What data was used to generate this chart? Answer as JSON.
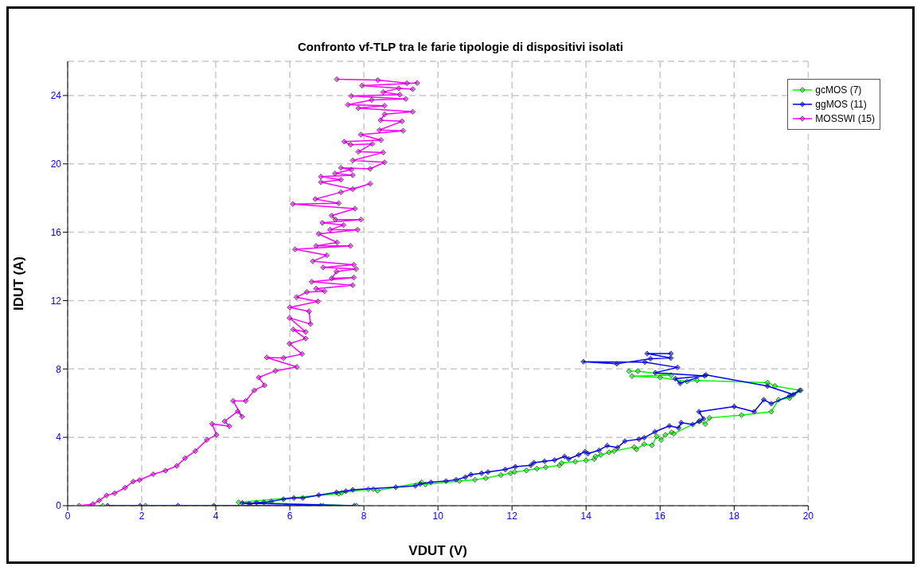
{
  "chart_data": {
    "type": "line",
    "title": "Confronto vf-TLP tra le farie tipologie di dispositivi isolati",
    "xlabel": "VDUT (V)",
    "ylabel": "IDUT (A)",
    "xlim": [
      0,
      20
    ],
    "xticks": [
      0,
      2,
      4,
      6,
      8,
      10,
      12,
      14,
      16,
      18,
      20
    ],
    "ylim": [
      0,
      26
    ],
    "yticks": [
      0,
      4,
      8,
      12,
      16,
      20,
      24
    ],
    "grid": true,
    "legend": "top right",
    "marker": "diamond",
    "line_style": "solid",
    "series": [
      {
        "name": "gcMOS (7)",
        "color": "#00ff00",
        "x": [
          0.95,
          2.1,
          5.9,
          6.9,
          7.8,
          4.62,
          7.32,
          7.4,
          8.12,
          8.25,
          8.37,
          9.56,
          9.66,
          10.58,
          11.0,
          11.29,
          11.7,
          11.96,
          12.07,
          12.39,
          12.67,
          12.91,
          13.28,
          13.34,
          13.71,
          14.0,
          14.22,
          14.26,
          14.4,
          14.62,
          14.76,
          15.3,
          15.36,
          15.57,
          15.78,
          15.91,
          16.03,
          16.14,
          16.31,
          16.37,
          17.07,
          17.22,
          17.33,
          18.2,
          19.0,
          19.2,
          19.5,
          19.8,
          19.1,
          18.9,
          17.0,
          16.73,
          16.0,
          15.24,
          16.3,
          15.4,
          15.16
        ],
        "values": [
          0,
          0,
          0,
          0,
          0,
          0.2,
          0.7,
          0.76,
          0.97,
          0.97,
          0.88,
          1.37,
          1.25,
          1.44,
          1.52,
          1.61,
          1.79,
          1.9,
          1.97,
          2.06,
          2.17,
          2.25,
          2.36,
          2.5,
          2.58,
          2.65,
          2.73,
          2.88,
          2.97,
          3.12,
          3.2,
          3.43,
          3.3,
          3.6,
          3.53,
          4.06,
          3.84,
          4.14,
          4.29,
          4.21,
          4.96,
          4.78,
          5.14,
          5.3,
          5.5,
          6.2,
          6.3,
          6.75,
          7.0,
          7.2,
          7.33,
          7.27,
          7.5,
          7.58,
          7.63,
          7.87,
          7.87
        ]
      },
      {
        "name": "ggMOS (11)",
        "color": "#0000ff",
        "x": [
          1.08,
          1.96,
          2.98,
          3.95,
          4.94,
          6.83,
          7.74,
          4.72,
          4.9,
          5.1,
          5.3,
          5.5,
          5.83,
          6.11,
          6.35,
          6.78,
          7.26,
          7.51,
          7.7,
          8.86,
          9.39,
          9.52,
          9.81,
          10.22,
          10.49,
          10.74,
          10.89,
          11.18,
          11.35,
          11.82,
          12.09,
          12.51,
          12.59,
          12.88,
          13.15,
          13.42,
          13.53,
          13.8,
          13.97,
          14.05,
          14.35,
          14.57,
          14.85,
          15.05,
          15.43,
          15.57,
          15.86,
          16.25,
          16.5,
          16.57,
          16.88,
          17.05,
          17.17,
          17.05,
          18.0,
          18.54,
          18.8,
          19.0,
          19.5,
          19.77,
          19.6,
          18.9,
          17.24,
          16.54,
          16.41,
          17.2,
          15.87,
          16.47,
          15.59,
          13.93,
          14.83,
          15.74,
          16.29,
          15.65,
          16.29
        ],
        "values": [
          0,
          0,
          0,
          0,
          0,
          0,
          0,
          0.15,
          0.12,
          0.18,
          0.2,
          0.25,
          0.38,
          0.45,
          0.45,
          0.62,
          0.78,
          0.85,
          0.93,
          1.08,
          1.16,
          1.27,
          1.37,
          1.44,
          1.52,
          1.67,
          1.82,
          1.9,
          1.97,
          2.12,
          2.28,
          2.36,
          2.52,
          2.6,
          2.67,
          2.88,
          2.74,
          2.97,
          3.16,
          3.05,
          3.24,
          3.51,
          3.4,
          3.78,
          3.89,
          3.98,
          4.32,
          4.67,
          4.55,
          4.86,
          4.75,
          4.93,
          5.08,
          5.5,
          5.8,
          5.5,
          6.2,
          5.97,
          6.43,
          6.75,
          6.5,
          7.0,
          7.65,
          7.16,
          7.43,
          7.6,
          7.78,
          8.09,
          8.4,
          8.42,
          8.3,
          8.6,
          8.64,
          8.9,
          8.9
        ]
      },
      {
        "name": "MOSSWI (15)",
        "color": "#ff00ff",
        "x": [
          0.31,
          0.68,
          0.85,
          1.05,
          1.27,
          1.55,
          1.77,
          1.94,
          2.31,
          2.64,
          2.95,
          3.17,
          3.45,
          3.76,
          4.02,
          3.9,
          4.37,
          4.24,
          4.59,
          4.71,
          4.47,
          4.81,
          5.04,
          5.32,
          5.16,
          5.61,
          6.19,
          5.38,
          5.83,
          6.33,
          5.99,
          6.43,
          6.09,
          6.43,
          5.99,
          6.56,
          6.52,
          6.0,
          6.76,
          6.18,
          6.46,
          6.94,
          6.71,
          7.7,
          6.59,
          7.73,
          7.13,
          7.26,
          7.79,
          6.9,
          7.73,
          6.62,
          7.0,
          6.14,
          7.64,
          6.71,
          7.28,
          6.78,
          7.83,
          7.09,
          7.45,
          6.88,
          7.92,
          7.23,
          7.13,
          7.76,
          6.08,
          7.32,
          6.69,
          7.38,
          8.17,
          7.7,
          6.84,
          7.38,
          6.84,
          7.7,
          7.22,
          7.66,
          7.38,
          8.17,
          8.56,
          7.7,
          8.52,
          7.85,
          8.23,
          7.64,
          7.47,
          8.46,
          7.92,
          9.06,
          8.42,
          9.03,
          8.45,
          8.56,
          9.32,
          7.85,
          8.56,
          7.57,
          8.21,
          9.13,
          7.66,
          8.97,
          8.52,
          8.94,
          9.32,
          7.95,
          9.44,
          9.16,
          8.38,
          7.27
        ],
        "values": [
          0,
          0.09,
          0.3,
          0.6,
          0.73,
          1.05,
          1.41,
          1.5,
          1.84,
          2.05,
          2.33,
          2.78,
          3.2,
          3.85,
          4.15,
          4.79,
          4.65,
          4.94,
          5.52,
          5.21,
          6.13,
          6.13,
          6.75,
          7.04,
          7.5,
          7.89,
          8.12,
          8.67,
          8.64,
          8.87,
          9.48,
          9.78,
          10.31,
          10.17,
          10.99,
          10.63,
          11.37,
          11.6,
          11.95,
          12.2,
          12.5,
          12.55,
          12.7,
          12.9,
          13.1,
          13.35,
          13.3,
          13.7,
          13.85,
          13.94,
          14.1,
          14.3,
          14.65,
          15.0,
          15.2,
          15.2,
          15.4,
          15.9,
          16.15,
          16.15,
          16.42,
          16.55,
          16.74,
          16.74,
          16.97,
          17.38,
          17.65,
          17.7,
          17.94,
          18.34,
          18.84,
          18.52,
          18.93,
          19.07,
          19.25,
          19.34,
          19.44,
          19.66,
          19.77,
          19.71,
          20.09,
          20.2,
          20.67,
          20.71,
          21.17,
          21.12,
          21.3,
          21.39,
          21.71,
          21.94,
          21.98,
          22.49,
          22.55,
          22.9,
          23.05,
          23.26,
          23.4,
          23.46,
          23.74,
          23.8,
          23.97,
          24.05,
          24.2,
          24.42,
          24.37,
          24.58,
          24.73,
          24.72,
          24.9,
          24.95
        ]
      }
    ]
  }
}
